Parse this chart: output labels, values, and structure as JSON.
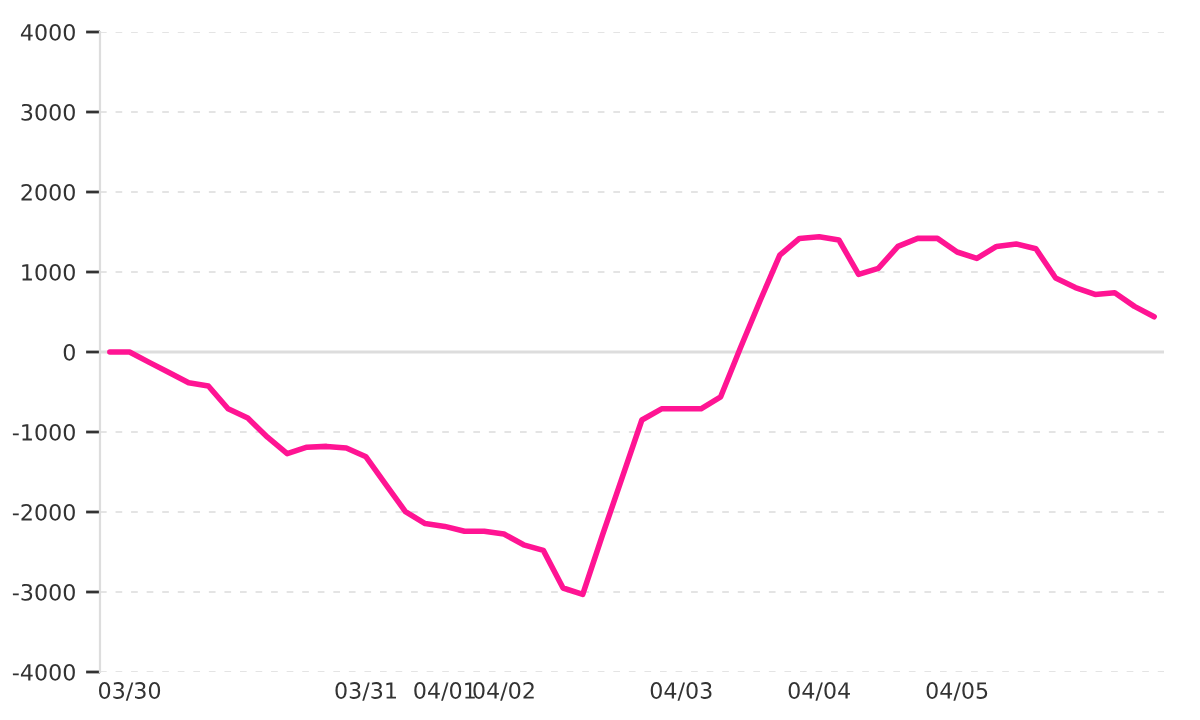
{
  "chart_data": {
    "type": "line",
    "categories": [
      null,
      "03/30",
      null,
      null,
      null,
      null,
      null,
      null,
      null,
      null,
      null,
      null,
      null,
      "03/31",
      null,
      null,
      null,
      "04/01",
      null,
      null,
      "04/02",
      null,
      null,
      null,
      null,
      null,
      null,
      null,
      null,
      "04/03",
      null,
      null,
      null,
      null,
      null,
      null,
      "04/04",
      null,
      null,
      null,
      null,
      null,
      null,
      "04/05",
      null,
      null,
      null,
      null,
      null,
      null,
      null,
      null,
      null,
      null
    ],
    "series": [
      {
        "color": "#ff1493",
        "values": [
          0,
          0,
          -130,
          -255,
          -385,
          -425,
          -710,
          -825,
          -1065,
          -1270,
          -1190,
          -1180,
          -1200,
          -1310,
          -1655,
          -1995,
          -2145,
          -2180,
          -2240,
          -2240,
          -2275,
          -2410,
          -2480,
          -2950,
          -3030,
          -2290,
          -1570,
          -850,
          -710,
          -710,
          -710,
          -560,
          50,
          640,
          1210,
          1420,
          1440,
          1400,
          970,
          1045,
          1320,
          1420,
          1420,
          1250,
          1170,
          1320,
          1350,
          1290,
          925,
          805,
          720,
          740,
          570,
          440
        ]
      }
    ],
    "ylim": [
      -4000,
      4000
    ],
    "yticks": [
      -4000,
      -3000,
      -2000,
      -1000,
      0,
      1000,
      2000,
      3000,
      4000
    ],
    "grid": "y",
    "marker": "none",
    "line_style": "solid",
    "ref_lines": [
      {
        "axis": "y",
        "value": 0,
        "color": "#dddddd",
        "line_style": "solid"
      }
    ]
  }
}
